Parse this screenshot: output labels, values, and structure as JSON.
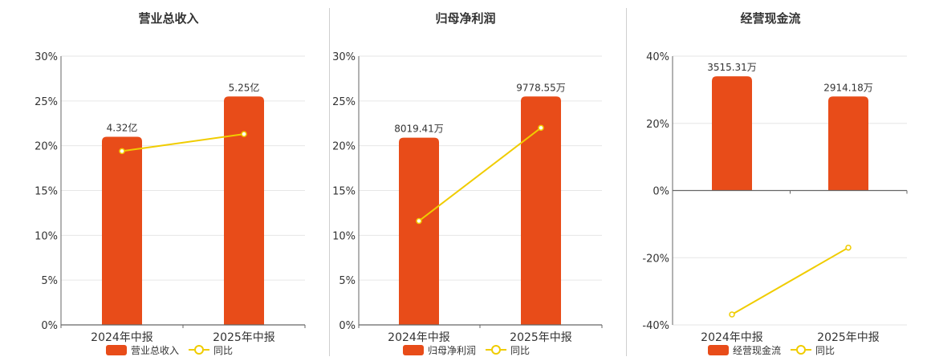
{
  "colors": {
    "bar": "#e84c19",
    "line": "#f0cc00",
    "grid": "#e6e6e6",
    "axis": "#666666",
    "text": "#333333"
  },
  "legend": {
    "line_label": "同比"
  },
  "chart_data": [
    {
      "type": "bar",
      "title": "营业总收入",
      "categories": [
        "2024年中报",
        "2025年中报"
      ],
      "bar_series_name": "营业总收入",
      "bar_heights_pct": [
        21,
        25.5
      ],
      "bar_labels": [
        "4.32亿",
        "5.25亿"
      ],
      "line_series_name": "同比",
      "line_values_pct": [
        19.4,
        21.3
      ],
      "ylim": [
        0,
        30
      ],
      "yticks": [
        0,
        5,
        10,
        15,
        20,
        25,
        30
      ],
      "ytick_labels": [
        "0%",
        "5%",
        "10%",
        "15%",
        "20%",
        "25%",
        "30%"
      ],
      "grid": true
    },
    {
      "type": "bar",
      "title": "归母净利润",
      "categories": [
        "2024年中报",
        "2025年中报"
      ],
      "bar_series_name": "归母净利润",
      "bar_heights_pct": [
        20.9,
        25.5
      ],
      "bar_labels": [
        "8019.41万",
        "9778.55万"
      ],
      "line_series_name": "同比",
      "line_values_pct": [
        11.6,
        22
      ],
      "ylim": [
        0,
        30
      ],
      "yticks": [
        0,
        5,
        10,
        15,
        20,
        25,
        30
      ],
      "ytick_labels": [
        "0%",
        "5%",
        "10%",
        "15%",
        "20%",
        "25%",
        "30%"
      ],
      "grid": true
    },
    {
      "type": "bar",
      "title": "经营现金流",
      "categories": [
        "2024年中报",
        "2025年中报"
      ],
      "bar_series_name": "经营现金流",
      "bar_heights_pct": [
        34,
        28
      ],
      "bar_labels": [
        "3515.31万",
        "2914.18万"
      ],
      "line_series_name": "同比",
      "line_values_pct": [
        -36.9,
        -17
      ],
      "ylim": [
        -40,
        40
      ],
      "yticks": [
        -40,
        -20,
        0,
        20,
        40
      ],
      "ytick_labels": [
        "-40%",
        "-20%",
        "0%",
        "20%",
        "40%"
      ],
      "grid": true
    }
  ]
}
